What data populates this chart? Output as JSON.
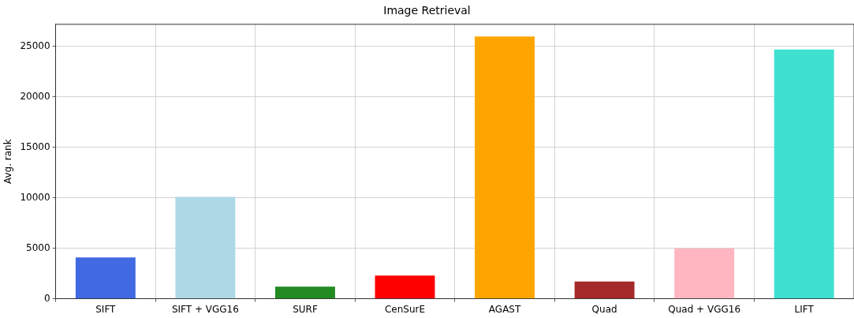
{
  "chart_data": {
    "type": "bar",
    "title": "Image Retrieval",
    "ylabel": "Avg. rank",
    "categories": [
      "SIFT",
      "SIFT + VGG16",
      "SURF",
      "CenSurE",
      "AGAST",
      "Quad",
      "Quad + VGG16",
      "LIFT"
    ],
    "values": [
      4100,
      10100,
      1200,
      2300,
      26000,
      1700,
      5000,
      24700
    ],
    "colors": [
      "#4169e1",
      "#add8e6",
      "#228b22",
      "#ff0000",
      "#ffa500",
      "#a52a2a",
      "#ffb6c1",
      "#40e0d0"
    ],
    "ylim": [
      0,
      27200
    ],
    "yticks": [
      0,
      5000,
      10000,
      15000,
      20000,
      25000
    ],
    "grid": true
  }
}
